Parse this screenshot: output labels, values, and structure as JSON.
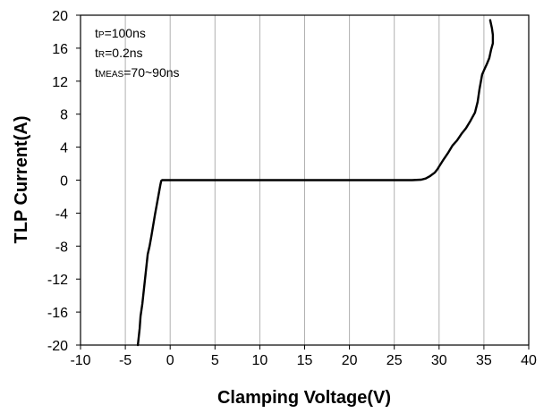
{
  "chart_data": {
    "type": "line",
    "title": "",
    "xlabel": "Clamping Voltage(V)",
    "ylabel": "TLP Current(A)",
    "xlim": [
      -10,
      40
    ],
    "ylim": [
      -20,
      20
    ],
    "x_ticks": [
      -10,
      -5,
      0,
      5,
      10,
      15,
      20,
      25,
      30,
      35,
      40
    ],
    "y_ticks": [
      20,
      16,
      12,
      8,
      4,
      0,
      -4,
      -8,
      -12,
      -16,
      -20
    ],
    "grid": "vertical",
    "legend": "none",
    "annotations": [
      {
        "main": "t",
        "sub": "P",
        "rest": "=100ns"
      },
      {
        "main": "t",
        "sub": "R",
        "rest": "=0.2ns"
      },
      {
        "main": "t",
        "sub": "MEAS",
        "rest": "=70~90ns"
      }
    ],
    "series": [
      {
        "color": "#000000",
        "x": [
          -3.6,
          -3.5,
          -3.4,
          -3.3,
          -3.1,
          -2.9,
          -2.7,
          -2.5,
          -2.3,
          -2.1,
          -1.9,
          -1.7,
          -1.5,
          -1.3,
          -1.1,
          -1.0,
          -0.9,
          0,
          5,
          10,
          15,
          20,
          25,
          27,
          28,
          28.5,
          29,
          29.5,
          29.8,
          30.2,
          30.5,
          31,
          31.5,
          32,
          32.5,
          33,
          33.5,
          34,
          34.3,
          34.5,
          34.7,
          34.8,
          35,
          35.3,
          35.6,
          35.8,
          36.0,
          36.0,
          35.9,
          35.7
        ],
        "y": [
          -20,
          -19.0,
          -18.0,
          -16.5,
          -15.0,
          -13.0,
          -11.0,
          -9.0,
          -8.0,
          -6.8,
          -5.5,
          -4.2,
          -3.0,
          -1.8,
          -0.6,
          -0.1,
          0.0,
          0.0,
          0.0,
          0.0,
          0.0,
          0.0,
          0.0,
          0.0,
          0.05,
          0.2,
          0.5,
          0.9,
          1.3,
          2.0,
          2.5,
          3.3,
          4.2,
          4.8,
          5.6,
          6.3,
          7.2,
          8.2,
          9.5,
          11.0,
          12.2,
          12.8,
          13.3,
          14.0,
          14.8,
          15.8,
          16.6,
          17.6,
          18.4,
          19.4
        ]
      }
    ]
  }
}
